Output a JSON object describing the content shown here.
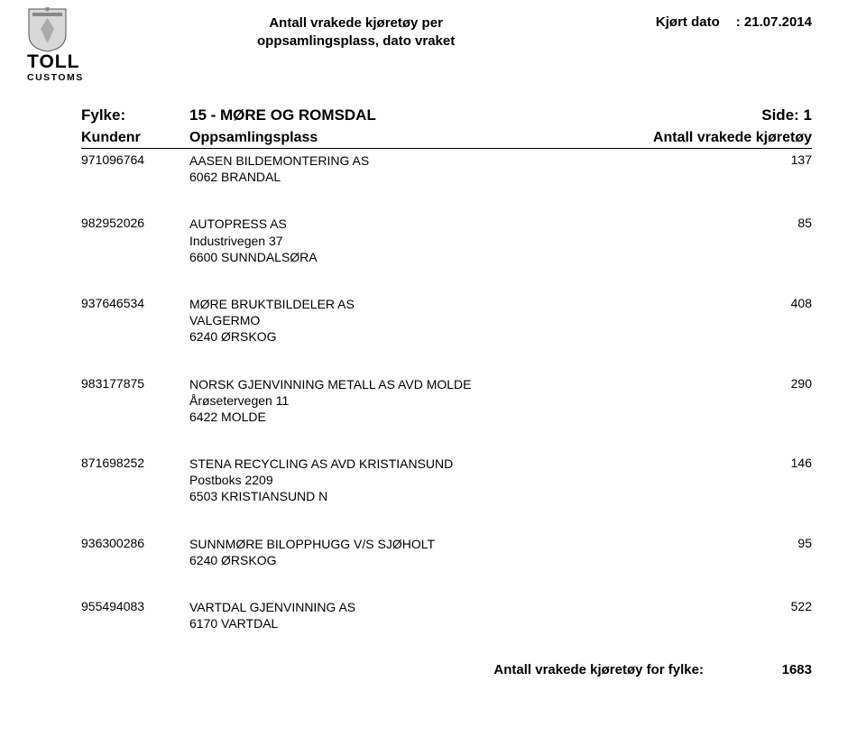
{
  "header": {
    "title_line1": "Antall vrakede kjøretøy per",
    "title_line2": "oppsamlingsplass, dato vraket",
    "run_date_label": "Kjørt dato",
    "run_date_value": ": 21.07.2014"
  },
  "logo": {
    "line1": "TOLL",
    "line2": "CUSTOMS"
  },
  "fylke": {
    "label": "Fylke:",
    "value": "15 - MØRE OG ROMSDAL",
    "side": "Side: 1"
  },
  "columns": {
    "kundenr": "Kundenr",
    "oppsamlingsplass": "Oppsamlingsplass",
    "antall": "Antall vrakede kjøretøy"
  },
  "entries": [
    {
      "kundenr": "971096764",
      "name": "AASEN BILDEMONTERING AS",
      "addr1": "",
      "addr2": "6062 BRANDAL",
      "count": "137"
    },
    {
      "kundenr": "982952026",
      "name": "AUTOPRESS AS",
      "addr1": "Industrivegen 37",
      "addr2": "6600 SUNNDALSØRA",
      "count": "85"
    },
    {
      "kundenr": "937646534",
      "name": "MØRE BRUKTBILDELER AS",
      "addr1": "VALGERMO",
      "addr2": "6240 ØRSKOG",
      "count": "408"
    },
    {
      "kundenr": "983177875",
      "name": "NORSK GJENVINNING METALL AS  AVD MOLDE",
      "addr1": "Årøsetervegen 11",
      "addr2": "6422 MOLDE",
      "count": "290"
    },
    {
      "kundenr": "871698252",
      "name": "STENA RECYCLING AS  AVD KRISTIANSUND",
      "addr1": "Postboks 2209",
      "addr2": "6503 KRISTIANSUND N",
      "count": "146"
    },
    {
      "kundenr": "936300286",
      "name": "SUNNMØRE BILOPPHUGG V/S SJØHOLT",
      "addr1": "",
      "addr2": "6240 ØRSKOG",
      "count": "95"
    },
    {
      "kundenr": "955494083",
      "name": "VARTDAL GJENVINNING AS",
      "addr1": "",
      "addr2": "6170 VARTDAL",
      "count": "522"
    }
  ],
  "total": {
    "label": "Antall vrakede kjøretøy for fylke:",
    "value": "1683"
  }
}
